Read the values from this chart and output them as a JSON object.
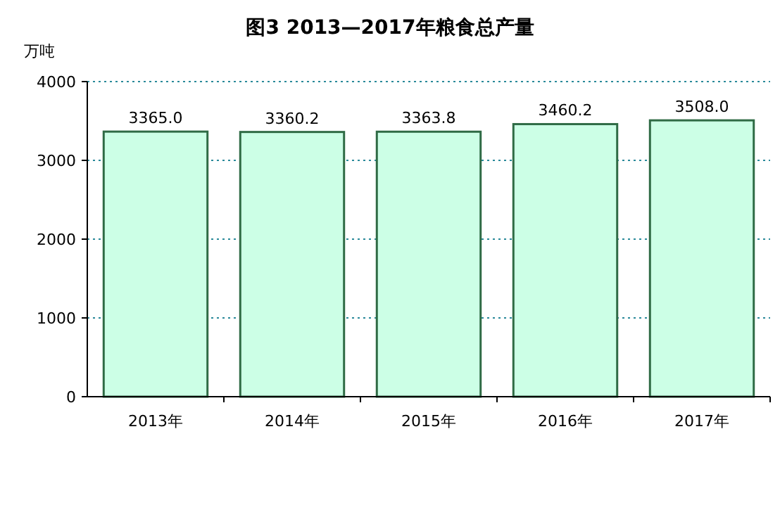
{
  "chart_data": {
    "type": "bar",
    "title": "图3 2013—2017年粮食总产量",
    "ylabel": "万吨",
    "categories": [
      "2013年",
      "2014年",
      "2015年",
      "2016年",
      "2017年"
    ],
    "values": [
      3365.0,
      3360.2,
      3363.8,
      3460.2,
      3508.0
    ],
    "value_labels": [
      "3365.0",
      "3360.2",
      "3363.8",
      "3460.2",
      "3508.0"
    ],
    "color": "#ccffe6",
    "ylim": [
      0,
      4000
    ],
    "yticks": [
      0,
      1000,
      2000,
      3000,
      4000
    ],
    "grid": "y"
  }
}
